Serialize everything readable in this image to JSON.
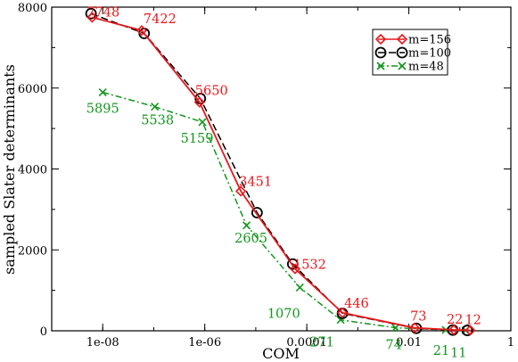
{
  "chart_data": {
    "type": "line",
    "xlabel": "COM",
    "ylabel": "sampled Slater determinants",
    "xscale": "log",
    "xlim": [
      1e-09,
      1
    ],
    "ylim": [
      0,
      8000
    ],
    "x_ticks": [
      {
        "value": 1e-08,
        "label": "1e-08"
      },
      {
        "value": 1e-06,
        "label": "1e-06"
      },
      {
        "value": 0.0001,
        "label": "0.0001"
      },
      {
        "value": 0.01,
        "label": "0.01"
      },
      {
        "value": 1,
        "label": "1"
      }
    ],
    "y_ticks": [
      {
        "value": 0,
        "label": "0"
      },
      {
        "value": 2000,
        "label": "2000"
      },
      {
        "value": 4000,
        "label": "4000"
      },
      {
        "value": 6000,
        "label": "6000"
      },
      {
        "value": 8000,
        "label": "8000"
      }
    ],
    "grid": false,
    "legend_position": "top-right",
    "series": [
      {
        "name": "m=156",
        "color": "#e8181c",
        "marker": "diamond",
        "line": "solid",
        "x": [
          6.2e-09,
          5.8e-08,
          7.9e-07,
          5.1e-06,
          5.9e-05,
          0.0005,
          0.013,
          0.076,
          0.16
        ],
        "y": [
          7748,
          7422,
          5650,
          3451,
          1532,
          446,
          73,
          22,
          12
        ]
      },
      {
        "name": "m=100",
        "color": "#000000",
        "marker": "circle",
        "line": "dashed",
        "x": [
          5.9e-09,
          6.5e-08,
          8.2e-07,
          1.06e-05,
          5.3e-05,
          0.0005,
          0.014,
          0.073,
          0.14
        ],
        "y": [
          7840,
          7350,
          5740,
          2920,
          1650,
          430,
          60,
          18,
          10
        ]
      },
      {
        "name": "m=48",
        "color": "#14961e",
        "marker": "x",
        "line": "dash-dot",
        "x": [
          1e-08,
          1.05e-07,
          9e-07,
          6.6e-06,
          7.3e-05,
          0.00046,
          0.0055,
          0.053,
          0.13
        ],
        "y": [
          5895,
          5538,
          5159,
          2605,
          1070,
          271,
          74,
          21,
          11
        ]
      }
    ],
    "data_labels": [
      {
        "series": "m=156",
        "text": "7748"
      },
      {
        "series": "m=156",
        "text": "7422"
      },
      {
        "series": "m=156",
        "text": "5650"
      },
      {
        "series": "m=156",
        "text": "3451"
      },
      {
        "series": "m=156",
        "text": "1532"
      },
      {
        "series": "m=156",
        "text": "446"
      },
      {
        "series": "m=156",
        "text": "73"
      },
      {
        "series": "m=156",
        "text": "22"
      },
      {
        "series": "m=156",
        "text": "12"
      },
      {
        "series": "m=48",
        "text": "5895"
      },
      {
        "series": "m=48",
        "text": "5538"
      },
      {
        "series": "m=48",
        "text": "5159"
      },
      {
        "series": "m=48",
        "text": "2605"
      },
      {
        "series": "m=48",
        "text": "1070"
      },
      {
        "series": "m=48",
        "text": "271"
      },
      {
        "series": "m=48",
        "text": "74"
      },
      {
        "series": "m=48",
        "text": "21"
      },
      {
        "series": "m=48",
        "text": "11"
      }
    ]
  }
}
